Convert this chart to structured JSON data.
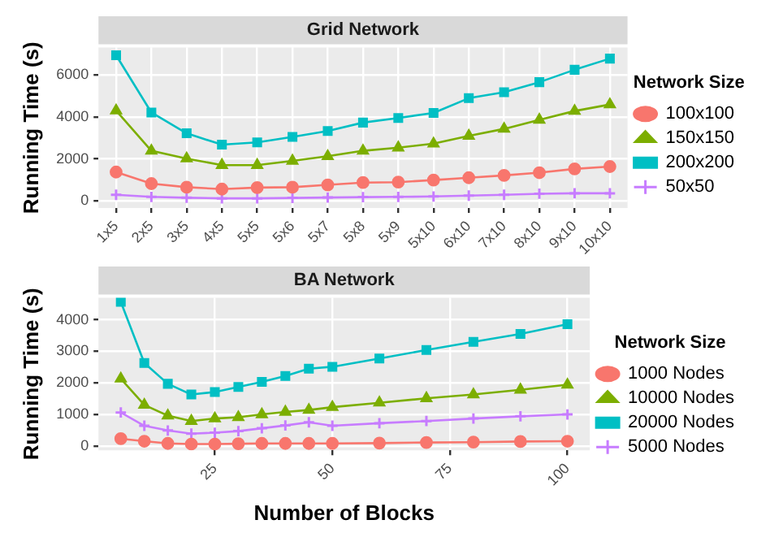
{
  "chart_data": [
    {
      "type": "line",
      "title": "Grid Network",
      "ylabel": "Running Time (s)",
      "legend_title": "Network Size",
      "legend": "right",
      "grid": true,
      "categories": [
        "1x5",
        "2x5",
        "3x5",
        "4x5",
        "5x5",
        "5x6",
        "5x7",
        "5x8",
        "5x9",
        "5x10",
        "6x10",
        "7x10",
        "8x10",
        "9x10",
        "10x10"
      ],
      "ylim": [
        -330,
        7300
      ],
      "yticks": [
        0,
        2000,
        4000,
        6000
      ],
      "series": [
        {
          "name": "100x100",
          "color": "#f8766d",
          "marker": "circle",
          "values": [
            1380,
            830,
            660,
            570,
            640,
            660,
            770,
            880,
            900,
            1000,
            1110,
            1220,
            1350,
            1530,
            1640
          ]
        },
        {
          "name": "150x150",
          "color": "#7cae00",
          "marker": "triangle",
          "values": [
            4300,
            2390,
            2020,
            1710,
            1710,
            1910,
            2130,
            2390,
            2540,
            2730,
            3100,
            3430,
            3860,
            4280,
            4590
          ]
        },
        {
          "name": "200x200",
          "color": "#00bfc4",
          "marker": "square",
          "values": [
            6930,
            4210,
            3220,
            2680,
            2790,
            3050,
            3330,
            3730,
            3950,
            4190,
            4890,
            5170,
            5650,
            6240,
            6770
          ]
        },
        {
          "name": "50x50",
          "color": "#c77cff",
          "marker": "cross",
          "values": [
            300,
            200,
            160,
            130,
            130,
            150,
            170,
            190,
            200,
            220,
            260,
            300,
            350,
            370,
            370
          ]
        }
      ]
    },
    {
      "type": "line",
      "title": "BA Network",
      "xlabel": "Number of Blocks",
      "ylabel": "Running Time (s)",
      "legend_title": "Network Size",
      "legend": "right",
      "grid": true,
      "x": [
        5,
        10,
        15,
        20,
        25,
        30,
        35,
        40,
        45,
        50,
        60,
        70,
        80,
        90,
        100
      ],
      "xlim": [
        0.25,
        104.75
      ],
      "xticks": [
        25,
        50,
        75,
        100
      ],
      "ylim": [
        -140,
        4700
      ],
      "yticks": [
        0,
        1000,
        2000,
        3000,
        4000
      ],
      "series": [
        {
          "name": "1000 Nodes",
          "color": "#f8766d",
          "marker": "circle",
          "values": [
            230,
            150,
            80,
            60,
            60,
            70,
            80,
            80,
            80,
            80,
            90,
            110,
            120,
            140,
            150
          ]
        },
        {
          "name": "10000 Nodes",
          "color": "#7cae00",
          "marker": "triangle",
          "values": [
            2130,
            1300,
            960,
            790,
            870,
            910,
            1000,
            1080,
            1140,
            1230,
            1370,
            1510,
            1630,
            1780,
            1940
          ]
        },
        {
          "name": "20000 Nodes",
          "color": "#00bfc4",
          "marker": "square",
          "values": [
            4570,
            2630,
            1970,
            1630,
            1710,
            1870,
            2030,
            2220,
            2450,
            2510,
            2770,
            3040,
            3300,
            3550,
            3860
          ]
        },
        {
          "name": "5000 Nodes",
          "color": "#c77cff",
          "marker": "cross",
          "values": [
            1060,
            640,
            490,
            390,
            420,
            470,
            560,
            650,
            750,
            640,
            720,
            790,
            870,
            940,
            1000
          ]
        }
      ]
    }
  ]
}
